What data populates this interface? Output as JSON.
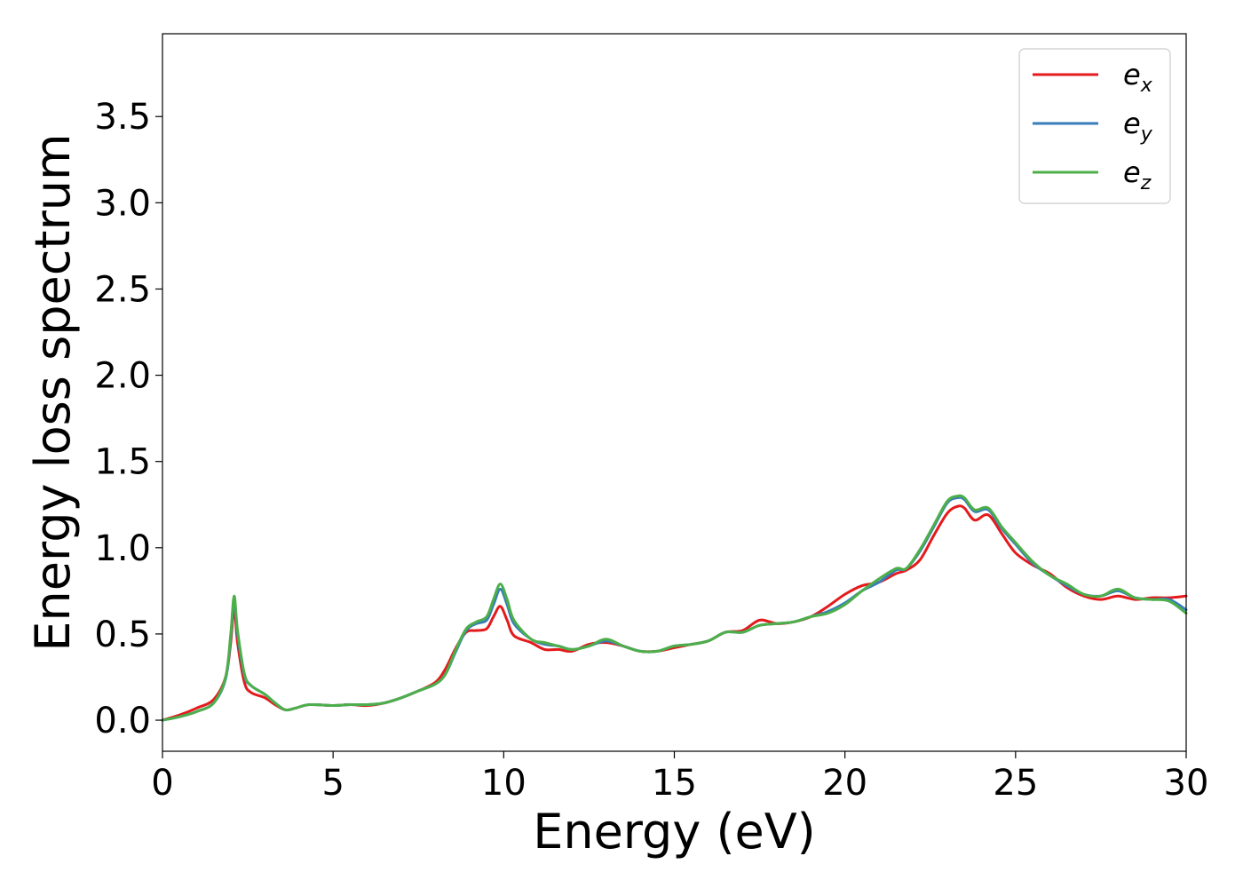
{
  "chart_data": {
    "type": "line",
    "title": "",
    "xlabel": "Energy (eV)",
    "ylabel": "Energy loss spectrum",
    "xlim": [
      0,
      30
    ],
    "ylim": [
      -0.18,
      3.98
    ],
    "xticks": [
      "0",
      "5",
      "10",
      "15",
      "20",
      "25",
      "30"
    ],
    "yticks": [
      "0.0",
      "0.5",
      "1.0",
      "1.5",
      "2.0",
      "2.5",
      "3.0",
      "3.5"
    ],
    "grid": false,
    "legend_position": "top-right",
    "series": [
      {
        "name": "e_x",
        "legend_main": "e",
        "legend_sub": "x",
        "color": "#e41a1c",
        "points": [
          [
            0,
            0
          ],
          [
            0.5,
            0.03
          ],
          [
            1,
            0.07
          ],
          [
            1.5,
            0.12
          ],
          [
            1.85,
            0.25
          ],
          [
            2.0,
            0.45
          ],
          [
            2.1,
            0.65
          ],
          [
            2.2,
            0.45
          ],
          [
            2.4,
            0.22
          ],
          [
            2.6,
            0.16
          ],
          [
            3,
            0.13
          ],
          [
            3.3,
            0.09
          ],
          [
            3.6,
            0.06
          ],
          [
            3.9,
            0.07
          ],
          [
            4.3,
            0.09
          ],
          [
            5,
            0.085
          ],
          [
            5.5,
            0.09
          ],
          [
            6,
            0.085
          ],
          [
            6.5,
            0.1
          ],
          [
            7,
            0.13
          ],
          [
            7.5,
            0.17
          ],
          [
            8,
            0.22
          ],
          [
            8.3,
            0.3
          ],
          [
            8.6,
            0.42
          ],
          [
            8.9,
            0.51
          ],
          [
            9.2,
            0.52
          ],
          [
            9.5,
            0.53
          ],
          [
            9.7,
            0.6
          ],
          [
            9.9,
            0.66
          ],
          [
            10.1,
            0.58
          ],
          [
            10.3,
            0.49
          ],
          [
            10.8,
            0.45
          ],
          [
            11.2,
            0.41
          ],
          [
            11.6,
            0.41
          ],
          [
            12,
            0.4
          ],
          [
            12.5,
            0.44
          ],
          [
            13,
            0.45
          ],
          [
            13.5,
            0.43
          ],
          [
            14,
            0.4
          ],
          [
            14.5,
            0.4
          ],
          [
            15,
            0.42
          ],
          [
            15.5,
            0.44
          ],
          [
            16,
            0.46
          ],
          [
            16.5,
            0.51
          ],
          [
            17,
            0.52
          ],
          [
            17.5,
            0.58
          ],
          [
            18,
            0.56
          ],
          [
            18.5,
            0.57
          ],
          [
            19,
            0.6
          ],
          [
            19.5,
            0.66
          ],
          [
            20,
            0.73
          ],
          [
            20.5,
            0.78
          ],
          [
            21,
            0.8
          ],
          [
            21.5,
            0.85
          ],
          [
            21.8,
            0.87
          ],
          [
            22.2,
            0.93
          ],
          [
            22.6,
            1.07
          ],
          [
            23,
            1.2
          ],
          [
            23.3,
            1.24
          ],
          [
            23.5,
            1.23
          ],
          [
            23.8,
            1.16
          ],
          [
            24.2,
            1.19
          ],
          [
            24.6,
            1.08
          ],
          [
            25,
            0.97
          ],
          [
            25.5,
            0.9
          ],
          [
            26,
            0.85
          ],
          [
            26.5,
            0.77
          ],
          [
            27,
            0.72
          ],
          [
            27.5,
            0.7
          ],
          [
            28,
            0.72
          ],
          [
            28.5,
            0.7
          ],
          [
            29,
            0.71
          ],
          [
            29.5,
            0.71
          ],
          [
            30,
            0.72
          ]
        ]
      },
      {
        "name": "e_y",
        "legend_main": "e",
        "legend_sub": "y",
        "color": "#377eb8",
        "points": [
          [
            0,
            0
          ],
          [
            0.5,
            0.02
          ],
          [
            1,
            0.05
          ],
          [
            1.5,
            0.1
          ],
          [
            1.85,
            0.24
          ],
          [
            2.0,
            0.48
          ],
          [
            2.1,
            0.7
          ],
          [
            2.2,
            0.5
          ],
          [
            2.4,
            0.26
          ],
          [
            2.6,
            0.2
          ],
          [
            3,
            0.15
          ],
          [
            3.3,
            0.1
          ],
          [
            3.6,
            0.06
          ],
          [
            3.9,
            0.07
          ],
          [
            4.3,
            0.09
          ],
          [
            5,
            0.085
          ],
          [
            5.5,
            0.09
          ],
          [
            6,
            0.09
          ],
          [
            6.5,
            0.1
          ],
          [
            7,
            0.13
          ],
          [
            7.5,
            0.17
          ],
          [
            8,
            0.21
          ],
          [
            8.3,
            0.27
          ],
          [
            8.6,
            0.4
          ],
          [
            8.9,
            0.52
          ],
          [
            9.2,
            0.56
          ],
          [
            9.5,
            0.58
          ],
          [
            9.7,
            0.67
          ],
          [
            9.9,
            0.76
          ],
          [
            10.1,
            0.67
          ],
          [
            10.3,
            0.56
          ],
          [
            10.8,
            0.47
          ],
          [
            11.2,
            0.44
          ],
          [
            11.6,
            0.43
          ],
          [
            12,
            0.41
          ],
          [
            12.5,
            0.43
          ],
          [
            13,
            0.46
          ],
          [
            13.5,
            0.43
          ],
          [
            14,
            0.4
          ],
          [
            14.5,
            0.4
          ],
          [
            15,
            0.43
          ],
          [
            15.5,
            0.44
          ],
          [
            16,
            0.46
          ],
          [
            16.5,
            0.51
          ],
          [
            17,
            0.51
          ],
          [
            17.5,
            0.55
          ],
          [
            18,
            0.56
          ],
          [
            18.5,
            0.57
          ],
          [
            19,
            0.6
          ],
          [
            19.5,
            0.63
          ],
          [
            20,
            0.68
          ],
          [
            20.5,
            0.75
          ],
          [
            21,
            0.8
          ],
          [
            21.5,
            0.87
          ],
          [
            21.8,
            0.88
          ],
          [
            22.2,
            0.98
          ],
          [
            22.6,
            1.12
          ],
          [
            23,
            1.26
          ],
          [
            23.3,
            1.29
          ],
          [
            23.5,
            1.28
          ],
          [
            23.8,
            1.21
          ],
          [
            24.2,
            1.22
          ],
          [
            24.6,
            1.11
          ],
          [
            25,
            1.02
          ],
          [
            25.5,
            0.91
          ],
          [
            26,
            0.84
          ],
          [
            26.5,
            0.78
          ],
          [
            27,
            0.73
          ],
          [
            27.5,
            0.72
          ],
          [
            28,
            0.75
          ],
          [
            28.5,
            0.71
          ],
          [
            29,
            0.7
          ],
          [
            29.5,
            0.7
          ],
          [
            30,
            0.64
          ]
        ]
      },
      {
        "name": "e_z",
        "legend_main": "e",
        "legend_sub": "z",
        "color": "#4daf4a",
        "points": [
          [
            0,
            0
          ],
          [
            0.5,
            0.02
          ],
          [
            1,
            0.05
          ],
          [
            1.5,
            0.1
          ],
          [
            1.85,
            0.25
          ],
          [
            2.0,
            0.5
          ],
          [
            2.1,
            0.72
          ],
          [
            2.2,
            0.52
          ],
          [
            2.4,
            0.27
          ],
          [
            2.6,
            0.2
          ],
          [
            3,
            0.15
          ],
          [
            3.3,
            0.1
          ],
          [
            3.6,
            0.06
          ],
          [
            3.9,
            0.07
          ],
          [
            4.3,
            0.09
          ],
          [
            5,
            0.085
          ],
          [
            5.5,
            0.09
          ],
          [
            6,
            0.09
          ],
          [
            6.5,
            0.1
          ],
          [
            7,
            0.13
          ],
          [
            7.5,
            0.17
          ],
          [
            8,
            0.21
          ],
          [
            8.3,
            0.27
          ],
          [
            8.6,
            0.41
          ],
          [
            8.9,
            0.53
          ],
          [
            9.2,
            0.57
          ],
          [
            9.5,
            0.6
          ],
          [
            9.7,
            0.7
          ],
          [
            9.9,
            0.79
          ],
          [
            10.1,
            0.7
          ],
          [
            10.3,
            0.58
          ],
          [
            10.8,
            0.47
          ],
          [
            11.2,
            0.45
          ],
          [
            11.6,
            0.43
          ],
          [
            12,
            0.41
          ],
          [
            12.5,
            0.43
          ],
          [
            13,
            0.47
          ],
          [
            13.5,
            0.43
          ],
          [
            14,
            0.4
          ],
          [
            14.5,
            0.4
          ],
          [
            15,
            0.43
          ],
          [
            15.5,
            0.44
          ],
          [
            16,
            0.46
          ],
          [
            16.5,
            0.51
          ],
          [
            17,
            0.51
          ],
          [
            17.5,
            0.55
          ],
          [
            18,
            0.56
          ],
          [
            18.5,
            0.57
          ],
          [
            19,
            0.6
          ],
          [
            19.5,
            0.62
          ],
          [
            20,
            0.67
          ],
          [
            20.5,
            0.75
          ],
          [
            21,
            0.82
          ],
          [
            21.5,
            0.88
          ],
          [
            21.8,
            0.88
          ],
          [
            22.2,
            0.99
          ],
          [
            22.6,
            1.13
          ],
          [
            23,
            1.27
          ],
          [
            23.3,
            1.3
          ],
          [
            23.5,
            1.29
          ],
          [
            23.8,
            1.22
          ],
          [
            24.2,
            1.23
          ],
          [
            24.6,
            1.12
          ],
          [
            25,
            1.03
          ],
          [
            25.5,
            0.92
          ],
          [
            26,
            0.84
          ],
          [
            26.5,
            0.79
          ],
          [
            27,
            0.73
          ],
          [
            27.5,
            0.72
          ],
          [
            28,
            0.76
          ],
          [
            28.5,
            0.71
          ],
          [
            29,
            0.7
          ],
          [
            29.5,
            0.69
          ],
          [
            30,
            0.62
          ]
        ]
      }
    ]
  }
}
